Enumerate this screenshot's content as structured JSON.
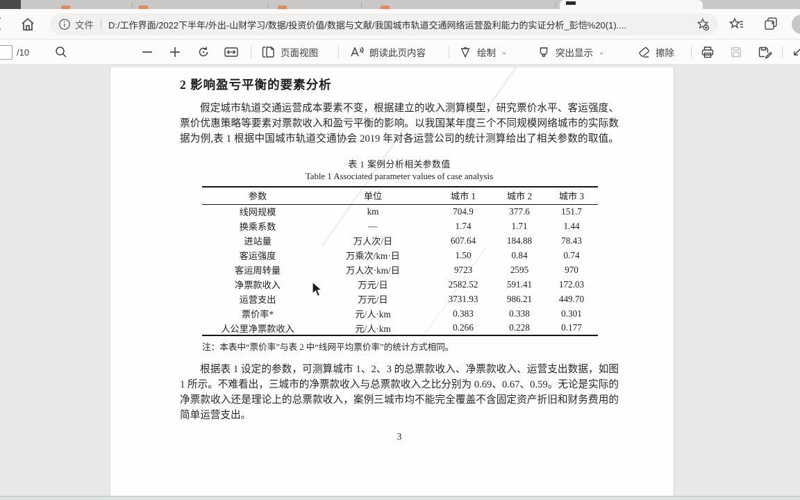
{
  "browser": {
    "address": {
      "scheme_label": "文件",
      "url": "D:/工作界面/2022下半年/外出-山财学习/数据/投资价值/数据与文献/我国城市轨道交通网络运营盈利能力的实证分析_彭恺%20(1)...."
    }
  },
  "pdf_toolbar": {
    "page_total": "/10",
    "page_view_label": "页面视图",
    "read_aloud_label": "朗读此页内容",
    "draw_label": "绘制",
    "highlight_label": "突出显示",
    "erase_label": "擦除"
  },
  "document": {
    "heading": "2 影响盈亏平衡的要素分析",
    "para1_lines": [
      "假定城市轨道交通运营成本要素不变，根据建立的收入测算模型，研究票价水平、客运强度、",
      "票价优惠策略等要素对票款收入和盈亏平衡的影响。以我国某年度三个不同规模网络城市的实际数",
      "据为例,表 1 根据中国城市轨道交通协会 2019 年对各运营公司的统计测算给出了相关参数的取值。"
    ],
    "table": {
      "caption_zh": "表 1  案例分析相关参数值",
      "caption_en": "Table 1 Associated parameter values of case analysis",
      "headers": [
        "参数",
        "单位",
        "城市 1",
        "城市 2",
        "城市 3"
      ],
      "rows": [
        [
          "线网规模",
          "km",
          "704.9",
          "377.6",
          "151.7"
        ],
        [
          "换乘系数",
          "—",
          "1.74",
          "1.71",
          "1.44"
        ],
        [
          "进站量",
          "万人次/日",
          "607.64",
          "184.88",
          "78.43"
        ],
        [
          "客运强度",
          "万乘次/km·日",
          "1.50",
          "0.84",
          "0.74"
        ],
        [
          "客运周转量",
          "万人次·km/日",
          "9723",
          "2595",
          "970"
        ],
        [
          "净票款收入",
          "万元/日",
          "2582.52",
          "591.41",
          "172.03"
        ],
        [
          "运营支出",
          "万元/日",
          "3731.93",
          "986.21",
          "449.70"
        ],
        [
          "票价率*",
          "元/人·km",
          "0.383",
          "0.338",
          "0.301"
        ],
        [
          "人公里净票款收入",
          "元/人·km",
          "0.266",
          "0.228",
          "0.177"
        ]
      ],
      "note": "注：本表中“票价率”与表 2 中“线网平均票价率”的统计方式相同。"
    },
    "para2_lines": [
      "根据表 1 设定的参数，可测算城市 1、2、3 的总票款收入、净票款收入、运营支出数据，如图",
      "1 所示。不难看出，三城市的净票款收入与总票款收入之比分别为 0.69、0.67、0.59。无论是实际的",
      "净票款收入还是理论上的总票款收入，案例三城市均不能完全覆盖不含固定资产折旧和财务费用的",
      "简单运营支出。"
    ],
    "page_number": "3"
  }
}
